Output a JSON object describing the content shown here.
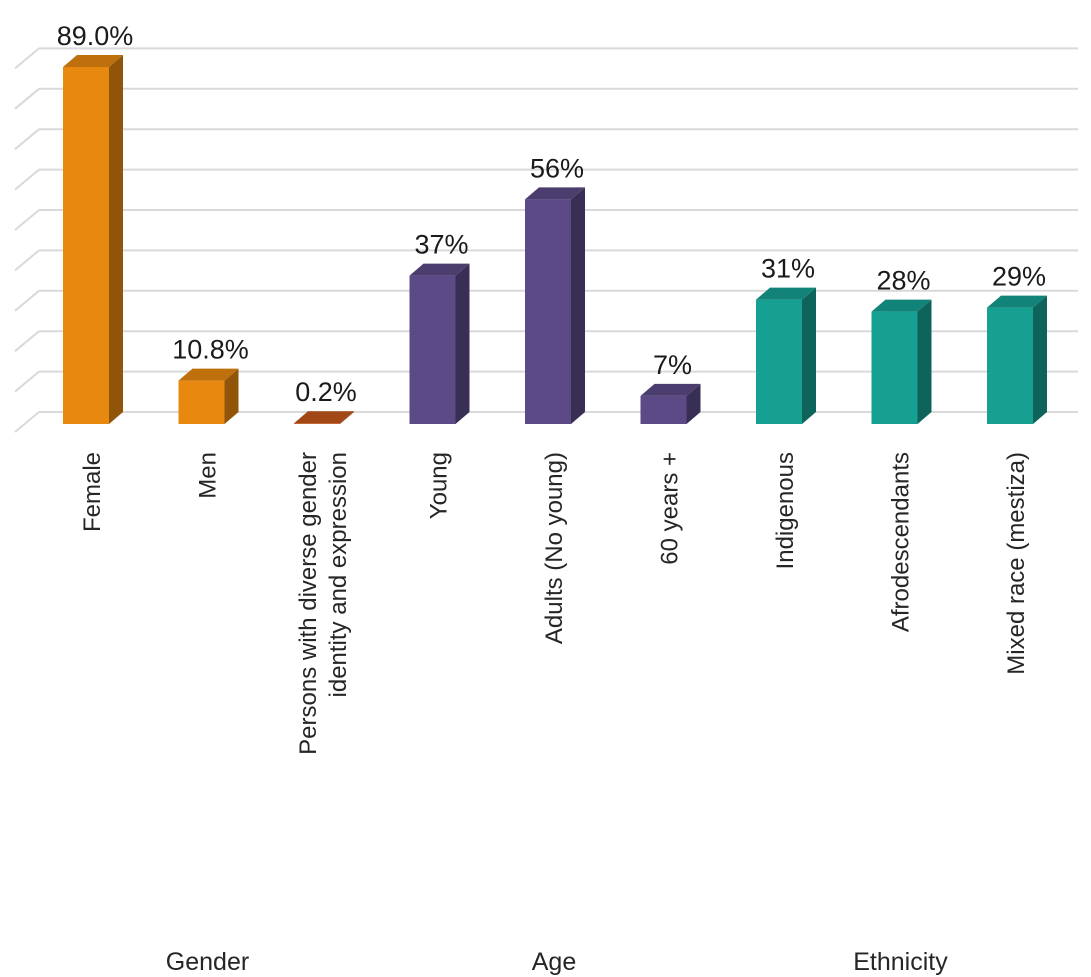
{
  "chart_data": {
    "type": "bar",
    "title": "",
    "xlabel": "",
    "ylabel": "",
    "ylim": [
      0,
      100
    ],
    "grid": true,
    "legend": "none",
    "groups": [
      {
        "name": "Gender",
        "color": "#E8890F",
        "categories": [
          "Female",
          "Men",
          "Persons with diverse gender identity and expression"
        ],
        "values": [
          89.0,
          10.8,
          0.2
        ],
        "labels": [
          "89.0%",
          "10.8%",
          "0.2%"
        ]
      },
      {
        "name": "Age",
        "color": "#5C4A86",
        "categories": [
          "Young",
          "Adults (No young)",
          "60 years +"
        ],
        "values": [
          37,
          56,
          7
        ],
        "labels": [
          "37%",
          "56%",
          "7%"
        ]
      },
      {
        "name": "Ethnicity",
        "color": "#16A092",
        "categories": [
          "Indigenous",
          "Afrodescendants",
          "Mixed race (mestiza)"
        ],
        "values": [
          31,
          28,
          29
        ],
        "labels": [
          "31%",
          "28%",
          "29%"
        ]
      }
    ],
    "special_colors": {
      "Persons with diverse gender identity and expression": "#C5581C"
    }
  }
}
